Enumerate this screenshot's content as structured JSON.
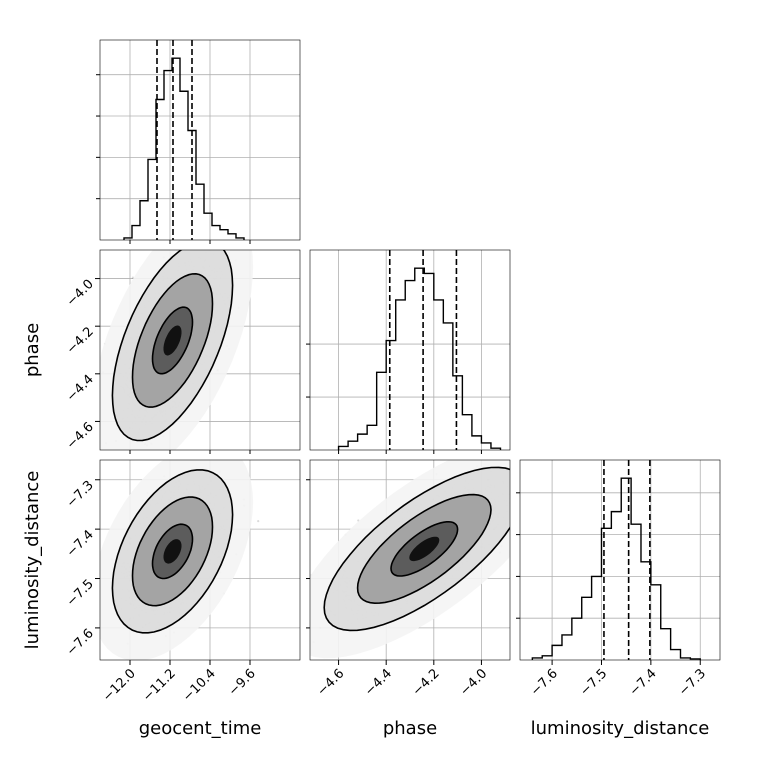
{
  "chart_data": {
    "type": "corner",
    "grid": true,
    "parameters": [
      {
        "name": "geocent_time",
        "label": "geocent_time",
        "range": [
          -12.6,
          -8.6
        ],
        "ticks": [
          -12.0,
          -11.2,
          -10.4,
          -9.6
        ],
        "tick_labels": [
          "−12.0",
          "−11.2",
          "−10.4",
          "−9.6"
        ]
      },
      {
        "name": "phase",
        "label": "phase",
        "range": [
          -4.72,
          -3.88
        ],
        "ticks": [
          -4.6,
          -4.4,
          -4.2,
          -4.0
        ],
        "tick_labels": [
          "−4.6",
          "−4.4",
          "−4.2",
          "−4.0"
        ]
      },
      {
        "name": "luminosity_distance",
        "label": "luminosity_distance",
        "range": [
          -7.665,
          -7.26
        ],
        "ticks": [
          -7.6,
          -7.5,
          -7.4,
          -7.3
        ],
        "tick_labels": [
          "−7.6",
          "−7.5",
          "−7.4",
          "−7.3"
        ]
      }
    ],
    "histograms": [
      {
        "param": "geocent_time",
        "bin_edges": [
          -12.12,
          -11.96,
          -11.8,
          -11.64,
          -11.48,
          -11.32,
          -11.16,
          -11.0,
          -10.84,
          -10.68,
          -10.52,
          -10.36,
          -10.2,
          -10.04,
          -9.88,
          -9.72
        ],
        "counts": [
          1,
          7,
          19,
          39,
          68,
          82,
          88,
          72,
          53,
          27,
          13,
          7,
          5,
          3,
          1
        ],
        "quantiles": [
          -11.46,
          -11.14,
          -10.76
        ]
      },
      {
        "param": "phase",
        "bin_edges": [
          -4.6,
          -4.56,
          -4.52,
          -4.48,
          -4.44,
          -4.4,
          -4.36,
          -4.32,
          -4.28,
          -4.24,
          -4.2,
          -4.16,
          -4.12,
          -4.08,
          -4.04,
          -4.0,
          -3.96,
          -3.92
        ],
        "counts": [
          2,
          5,
          9,
          14,
          44,
          62,
          85,
          96,
          103,
          100,
          85,
          72,
          42,
          20,
          8,
          4,
          1
        ],
        "quantiles": [
          -4.385,
          -4.245,
          -4.105
        ]
      },
      {
        "param": "luminosity_distance",
        "bin_edges": [
          -7.64,
          -7.62,
          -7.6,
          -7.58,
          -7.56,
          -7.54,
          -7.52,
          -7.5,
          -7.48,
          -7.46,
          -7.44,
          -7.42,
          -7.4,
          -7.38,
          -7.36,
          -7.34,
          -7.32,
          -7.3
        ],
        "counts": [
          1,
          2,
          7,
          12,
          20,
          30,
          40,
          63,
          71,
          87,
          65,
          47,
          36,
          15,
          5,
          1,
          0.5
        ],
        "quantiles": [
          -7.495,
          -7.445,
          -7.402
        ]
      }
    ],
    "joint": [
      {
        "x": "geocent_time",
        "y": "phase",
        "center": [
          -11.15,
          -4.26
        ],
        "sd": [
          0.4,
          0.14
        ],
        "rho": 0.55
      },
      {
        "x": "geocent_time",
        "y": "luminosity_distance",
        "center": [
          -11.15,
          -7.445
        ],
        "sd": [
          0.4,
          0.055
        ],
        "rho": 0.45
      },
      {
        "x": "phase",
        "y": "luminosity_distance",
        "center": [
          -4.24,
          -7.44
        ],
        "sd": [
          0.14,
          0.055
        ],
        "rho": 0.72
      }
    ],
    "contour_levels": [
      0.393,
      0.865,
      0.989,
      0.9997
    ]
  }
}
